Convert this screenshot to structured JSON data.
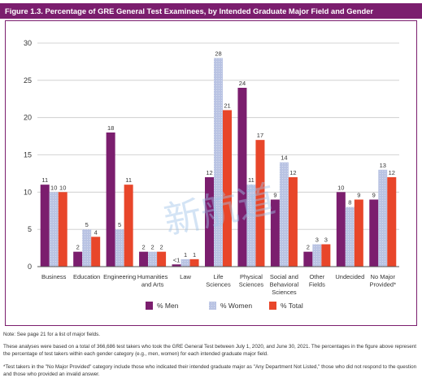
{
  "figure_title": "Figure 1.3. Percentage of GRE General Test Examinees, by Intended Graduate Major Field and Gender",
  "notes": {
    "note1": "Note: See page 21 for a list of major fields.",
    "note2": "These analyses were based on a total of 366,686 test takers who took the GRE General Test between July 1, 2020, and June 30, 2021. The percentages in the figure above represent the percentage of test takers within each gender category (e.g., men, women) for each intended graduate major field.",
    "note3": "*Test takers in the \"No Major Provided\" category include those who indicated their intended graduate major as \"Any Department Not Listed,\" those who did not respond to the question and those who provided an invalid answer."
  },
  "watermark": "新航道",
  "colors": {
    "men": "#7b1e6e",
    "women": "#b9c3e3",
    "total": "#e8462a",
    "frame": "#7b1e6e",
    "grid": "#c9c9c9"
  },
  "chart_data": {
    "type": "bar",
    "title": "",
    "xlabel": "",
    "ylabel": "",
    "ylim": [
      0,
      30
    ],
    "yticks": [
      "0",
      "5",
      "10",
      "15",
      "20",
      "25",
      "30"
    ],
    "grid": true,
    "legend_position": "bottom-center",
    "categories": [
      [
        "Business"
      ],
      [
        "Education"
      ],
      [
        "Engineering"
      ],
      [
        "Humanities",
        "and Arts"
      ],
      [
        "Law"
      ],
      [
        "Life",
        "Sciences"
      ],
      [
        "Physical",
        "Sciences"
      ],
      [
        "Social and",
        "Behavioral",
        "Sciences"
      ],
      [
        "Other",
        "Fields"
      ],
      [
        "Undecided"
      ],
      [
        "No Major",
        "Provided*"
      ]
    ],
    "series": [
      {
        "name": "% Men",
        "values": [
          11,
          2,
          18,
          2,
          0.3,
          12,
          24,
          9,
          2,
          10,
          9
        ],
        "labels": [
          "11",
          "2",
          "18",
          "2",
          "<1",
          "12",
          "24",
          "9",
          "2",
          "10",
          "9"
        ]
      },
      {
        "name": "% Women",
        "values": [
          10,
          5,
          5,
          2,
          1,
          28,
          11,
          14,
          3,
          8,
          13
        ],
        "labels": [
          "10",
          "5",
          "5",
          "2",
          "1",
          "28",
          "11",
          "14",
          "3",
          "8",
          "13"
        ]
      },
      {
        "name": "% Total",
        "values": [
          10,
          4,
          11,
          2,
          1,
          21,
          17,
          12,
          3,
          9,
          12
        ],
        "labels": [
          "10",
          "4",
          "11",
          "2",
          "1",
          "21",
          "17",
          "12",
          "3",
          "9",
          "12"
        ]
      }
    ]
  }
}
